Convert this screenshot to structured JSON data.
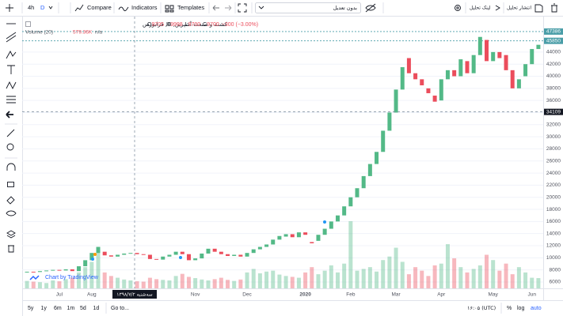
{
  "toolbar": {
    "interval": "4h",
    "resolution": "D",
    "compare": "Compare",
    "indicators": "Indicators",
    "templates": "Templates",
    "adjustment": "بدون تعدیل",
    "share_link": "لینک تحلیل",
    "publish": "انتشار تحلیل"
  },
  "legend": {
    "symbol": "کشت و صنعت آشپرین, D, فرابورس",
    "o_label": "O",
    "open": 9705,
    "h_label": "H",
    "high": 9998,
    "l_label": "L",
    "low": 9700,
    "c_label": "C",
    "close": 9700,
    "change": "−300 (−3.00%)",
    "volume_title": "Volume (20)",
    "volume_value": "579.36K",
    "volume_na": "n/a"
  },
  "watermark": "Chart by TradingView",
  "chart_data": {
    "type": "candlestick",
    "categories": [
      null,
      null,
      null,
      null,
      null,
      "Jul",
      null,
      null,
      null,
      null,
      "Aug",
      null,
      null,
      null,
      null,
      null,
      null,
      null,
      null,
      null,
      null,
      null,
      null,
      null,
      null,
      null,
      "Nov",
      null,
      null,
      null,
      null,
      null,
      null,
      null,
      "Dec",
      null,
      null,
      null,
      null,
      null,
      null,
      null,
      null,
      "2020",
      null,
      null,
      null,
      null,
      null,
      null,
      "Feb",
      null,
      null,
      null,
      null,
      null,
      null,
      "Mar",
      null,
      null,
      null,
      null,
      null,
      null,
      "Apr",
      null,
      null,
      null,
      null,
      null,
      null,
      null,
      "May",
      null,
      null,
      null,
      null,
      null,
      "Jun",
      null
    ],
    "open": [
      7600,
      7700,
      7650,
      7800,
      7900,
      8000,
      7900,
      8100,
      7800,
      8600,
      9600,
      10800,
      11000,
      10400,
      10200,
      10500,
      10700,
      10800,
      10600,
      10500,
      9800,
      9700,
      10200,
      10500,
      11000,
      10600,
      9600,
      9900,
      10700,
      11500,
      11000,
      10600,
      10300,
      10500,
      10200,
      10800,
      11400,
      11800,
      12200,
      13000,
      13500,
      13900,
      13400,
      14200,
      12600,
      12800,
      13800,
      14800,
      16000,
      17000,
      18500,
      20000,
      21500,
      23500,
      25500,
      27500,
      31000,
      34000,
      37800,
      43000,
      40500,
      39500,
      38000,
      36800,
      36000,
      39500,
      41000,
      40000,
      42500,
      40500,
      43500,
      46000,
      42500,
      44000,
      43500,
      41000,
      38000,
      40000,
      42000,
      44500
    ],
    "close": [
      7700,
      7650,
      7800,
      7900,
      8000,
      7900,
      8100,
      7800,
      8600,
      9600,
      10800,
      11800,
      10400,
      10200,
      10500,
      10700,
      10800,
      10600,
      10500,
      9800,
      9700,
      10200,
      10500,
      11000,
      10600,
      9600,
      9900,
      10700,
      11500,
      11000,
      10600,
      10300,
      10500,
      10200,
      10800,
      11400,
      11800,
      12200,
      13000,
      13600,
      13900,
      13400,
      14200,
      13800,
      12400,
      13800,
      14800,
      16000,
      17000,
      18500,
      20000,
      21500,
      23500,
      25500,
      27500,
      31000,
      34000,
      37800,
      41500,
      40500,
      39500,
      38500,
      37200,
      35800,
      39500,
      41000,
      40000,
      42800,
      40500,
      43500,
      46500,
      42500,
      44000,
      43000,
      41000,
      38000,
      39500,
      42000,
      44500,
      45200
    ],
    "volume": [
      420000,
      380000,
      350000,
      300000,
      450000,
      400000,
      520000,
      610000,
      900000,
      1200000,
      1500000,
      2100000,
      900000,
      700000,
      600000,
      500000,
      450000,
      400000,
      380000,
      600000,
      520000,
      480000,
      450000,
      700000,
      820000,
      650000,
      580000,
      500000,
      450000,
      520000,
      600000,
      480000,
      420000,
      500000,
      900000,
      1100000,
      850000,
      950000,
      1000000,
      780000,
      700000,
      650000,
      600000,
      900000,
      1200000,
      800000,
      1000000,
      1300000,
      900000,
      1400000,
      3800000,
      1000000,
      1100000,
      1200000,
      950000,
      1600000,
      1800000,
      2300000,
      1500000,
      800000,
      1200000,
      1000000,
      700000,
      1300000,
      1400000,
      2500000,
      1700000,
      1200000,
      900000,
      1100000,
      1300000,
      1900000,
      1600000,
      1000000,
      1400000,
      800000,
      1200000,
      900000,
      600000,
      579360
    ],
    "up_color": "#53b987",
    "down_color": "#eb4d5c",
    "ylim": [
      4950,
      47900
    ],
    "yticks": [
      6000,
      8000,
      10000,
      12000,
      14000,
      16000,
      18000,
      20000,
      22000,
      24000,
      26000,
      28000,
      30000,
      32000,
      34000,
      36000,
      38000,
      40000,
      42000,
      44000
    ],
    "grid": true,
    "price_lines": [
      {
        "value": 47386,
        "color": "#4a9ea8"
      },
      {
        "value": 45850,
        "color": "#4a9ea8"
      }
    ],
    "crosshair": {
      "value": 34109,
      "date_label": "سه‌شنبه ۱۳۹۸/۷/۲"
    }
  },
  "bottom_bar": {
    "ranges": [
      "5y",
      "1y",
      "6m",
      "1m",
      "5d",
      "1d"
    ],
    "goto": "Go to...",
    "time": "۱۶:۰۵ (UTC)",
    "percent": "%",
    "log": "log",
    "auto": "auto"
  }
}
